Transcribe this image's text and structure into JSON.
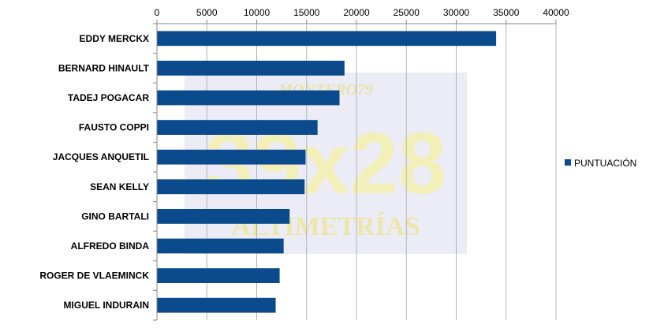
{
  "chart_data": {
    "type": "bar",
    "orientation": "horizontal",
    "categories": [
      "EDDY MERCKX",
      "BERNARD HINAULT",
      "TADEJ POGACAR",
      "FAUSTO COPPI",
      "JACQUES ANQUETIL",
      "SEAN KELLY",
      "GINO BARTALI",
      "ALFREDO BINDA",
      "ROGER DE VLAEMINCK",
      "MIGUEL INDURAIN"
    ],
    "series": [
      {
        "name": "PUNTUACIÓN",
        "color": "#0b4a8c",
        "values": [
          34000,
          18800,
          18300,
          16100,
          14900,
          14800,
          13300,
          12700,
          12300,
          11900
        ]
      }
    ],
    "xlim": [
      0,
      40000
    ],
    "xticks": [
      "0",
      "5000",
      "10000",
      "15000",
      "20000",
      "25000",
      "30000",
      "35000",
      "40000"
    ],
    "x_axis_position": "top",
    "grid": true,
    "legend_position": "right",
    "title": "",
    "xlabel": "",
    "ylabel": ""
  },
  "watermark": {
    "line1": "MONTERO79",
    "line2": "39x28",
    "line3": "ALTIMETRÍAS"
  }
}
